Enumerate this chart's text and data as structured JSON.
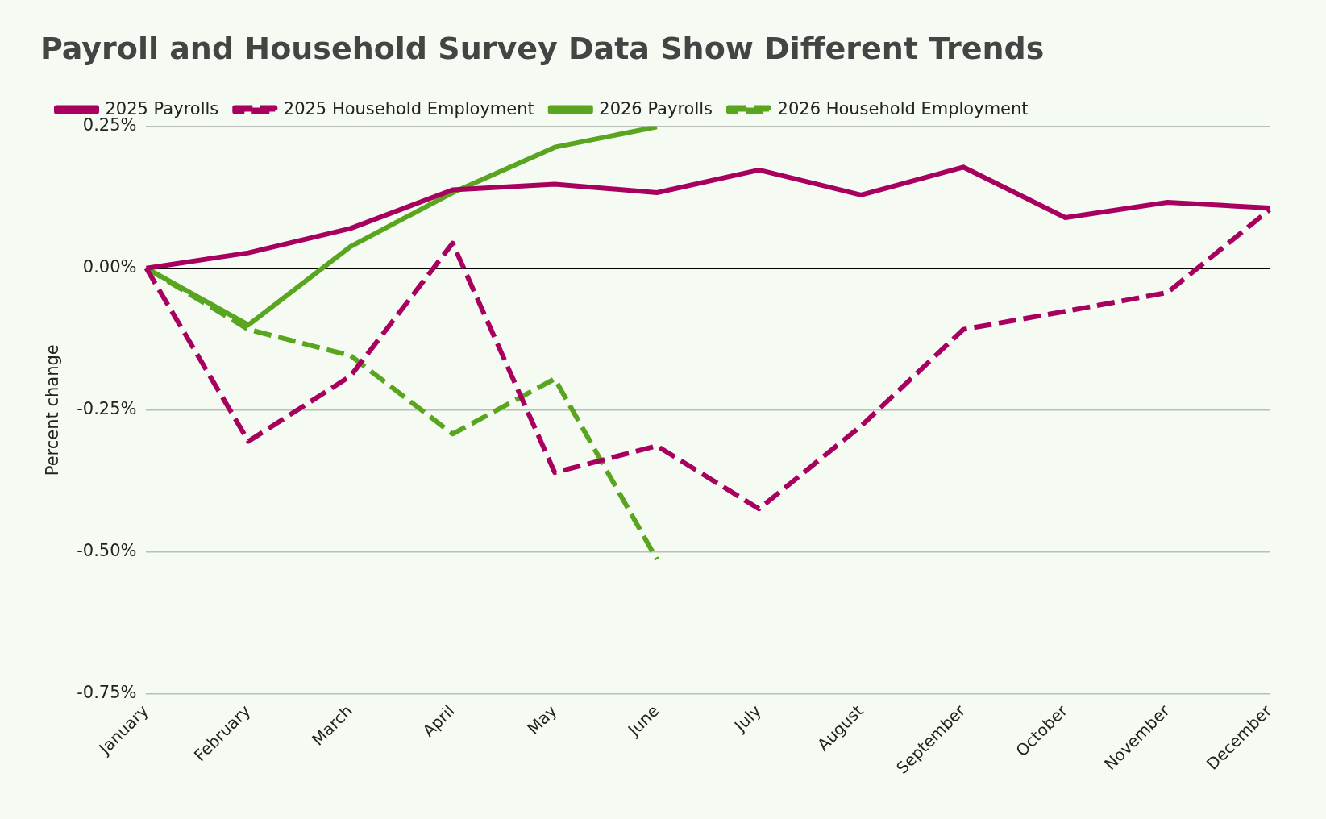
{
  "chart_data": {
    "type": "line",
    "title": "Payroll and Household Survey Data Show Different Trends",
    "ylabel": "Percent change",
    "categories": [
      "January",
      "February",
      "March",
      "April",
      "May",
      "June",
      "July",
      "August",
      "September",
      "October",
      "November",
      "December"
    ],
    "series": [
      {
        "name": "2025 Payrolls",
        "color": "#a8005e",
        "line_style": "solid",
        "values": [
          0,
          0.027,
          0.07,
          0.138,
          0.148,
          0.133,
          0.173,
          0.129,
          0.178,
          0.089,
          0.116,
          0.106
        ]
      },
      {
        "name": "2025 Household Employment",
        "color": "#a8005e",
        "line_style": "dashed",
        "values": [
          0,
          -0.305,
          -0.19,
          0.044,
          -0.36,
          -0.313,
          -0.424,
          -0.278,
          -0.108,
          -0.076,
          -0.043,
          0.103
        ]
      },
      {
        "name": "2026 Payrolls",
        "color": "#5aa51f",
        "line_style": "solid",
        "values": [
          0,
          -0.1,
          0.038,
          0.133,
          0.213,
          0.249,
          null,
          null,
          null,
          null,
          null,
          null
        ]
      },
      {
        "name": "2026 Household Employment",
        "color": "#5aa51f",
        "line_style": "dashed",
        "values": [
          0,
          -0.108,
          -0.154,
          -0.292,
          -0.195,
          -0.513,
          null,
          null,
          null,
          null,
          null,
          null
        ]
      }
    ],
    "ylim": [
      -0.75,
      0.25
    ],
    "yticks": [
      {
        "value": -0.75,
        "label": "-0.75%"
      },
      {
        "value": -0.5,
        "label": "-0.50%"
      },
      {
        "value": -0.25,
        "label": "-0.25%"
      },
      {
        "value": 0,
        "label": "0.00%"
      },
      {
        "value": 0.25,
        "label": "0.25%"
      }
    ],
    "grid": "y",
    "legend": "top left",
    "marker": "none"
  }
}
